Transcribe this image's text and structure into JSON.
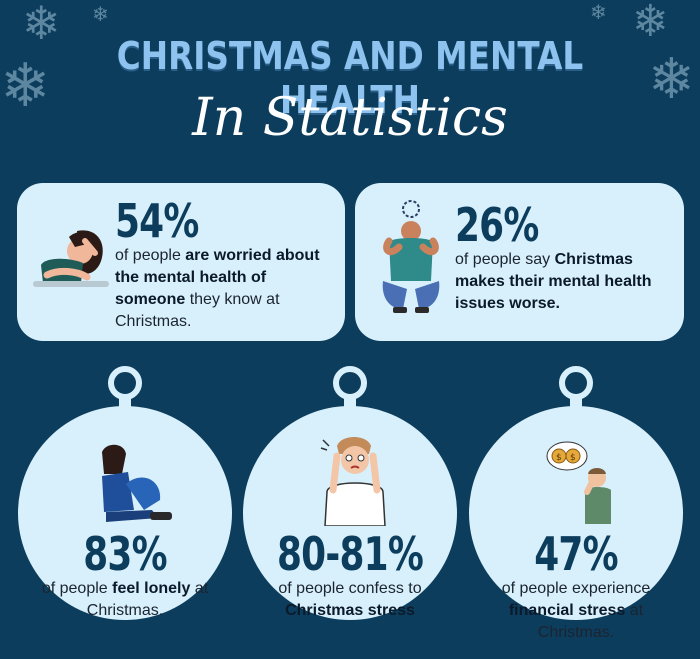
{
  "header": {
    "title": "CHRISTMAS AND MENTAL HEALTH",
    "subtitle": "In Statistics"
  },
  "cards": [
    {
      "stat": "54%",
      "pre": "of people ",
      "bold": "are worried about the mental health of someone",
      "post": " they know at Christmas."
    },
    {
      "stat": "26%",
      "pre": "of people say ",
      "bold": "Christmas makes their mental health issues worse.",
      "post": ""
    }
  ],
  "ornaments": [
    {
      "stat": "83%",
      "pre": "of people ",
      "bold": "feel lonely",
      "post": " at Christmas."
    },
    {
      "stat": "80-81%",
      "pre": "of people confess to ",
      "bold": "Christmas stress",
      "post": ""
    },
    {
      "stat": "47%",
      "pre": "of people experience ",
      "bold": "financial stress",
      "post": " at Christmas."
    }
  ],
  "colors": {
    "background": "#0d3d5c",
    "card": "#d8f0fb",
    "title": "#8ec3f0"
  },
  "icons": [
    "snowflake-icon",
    "worried-woman-icon",
    "stressed-man-icon",
    "lonely-person-icon",
    "stressed-person-icon",
    "money-worry-icon"
  ]
}
